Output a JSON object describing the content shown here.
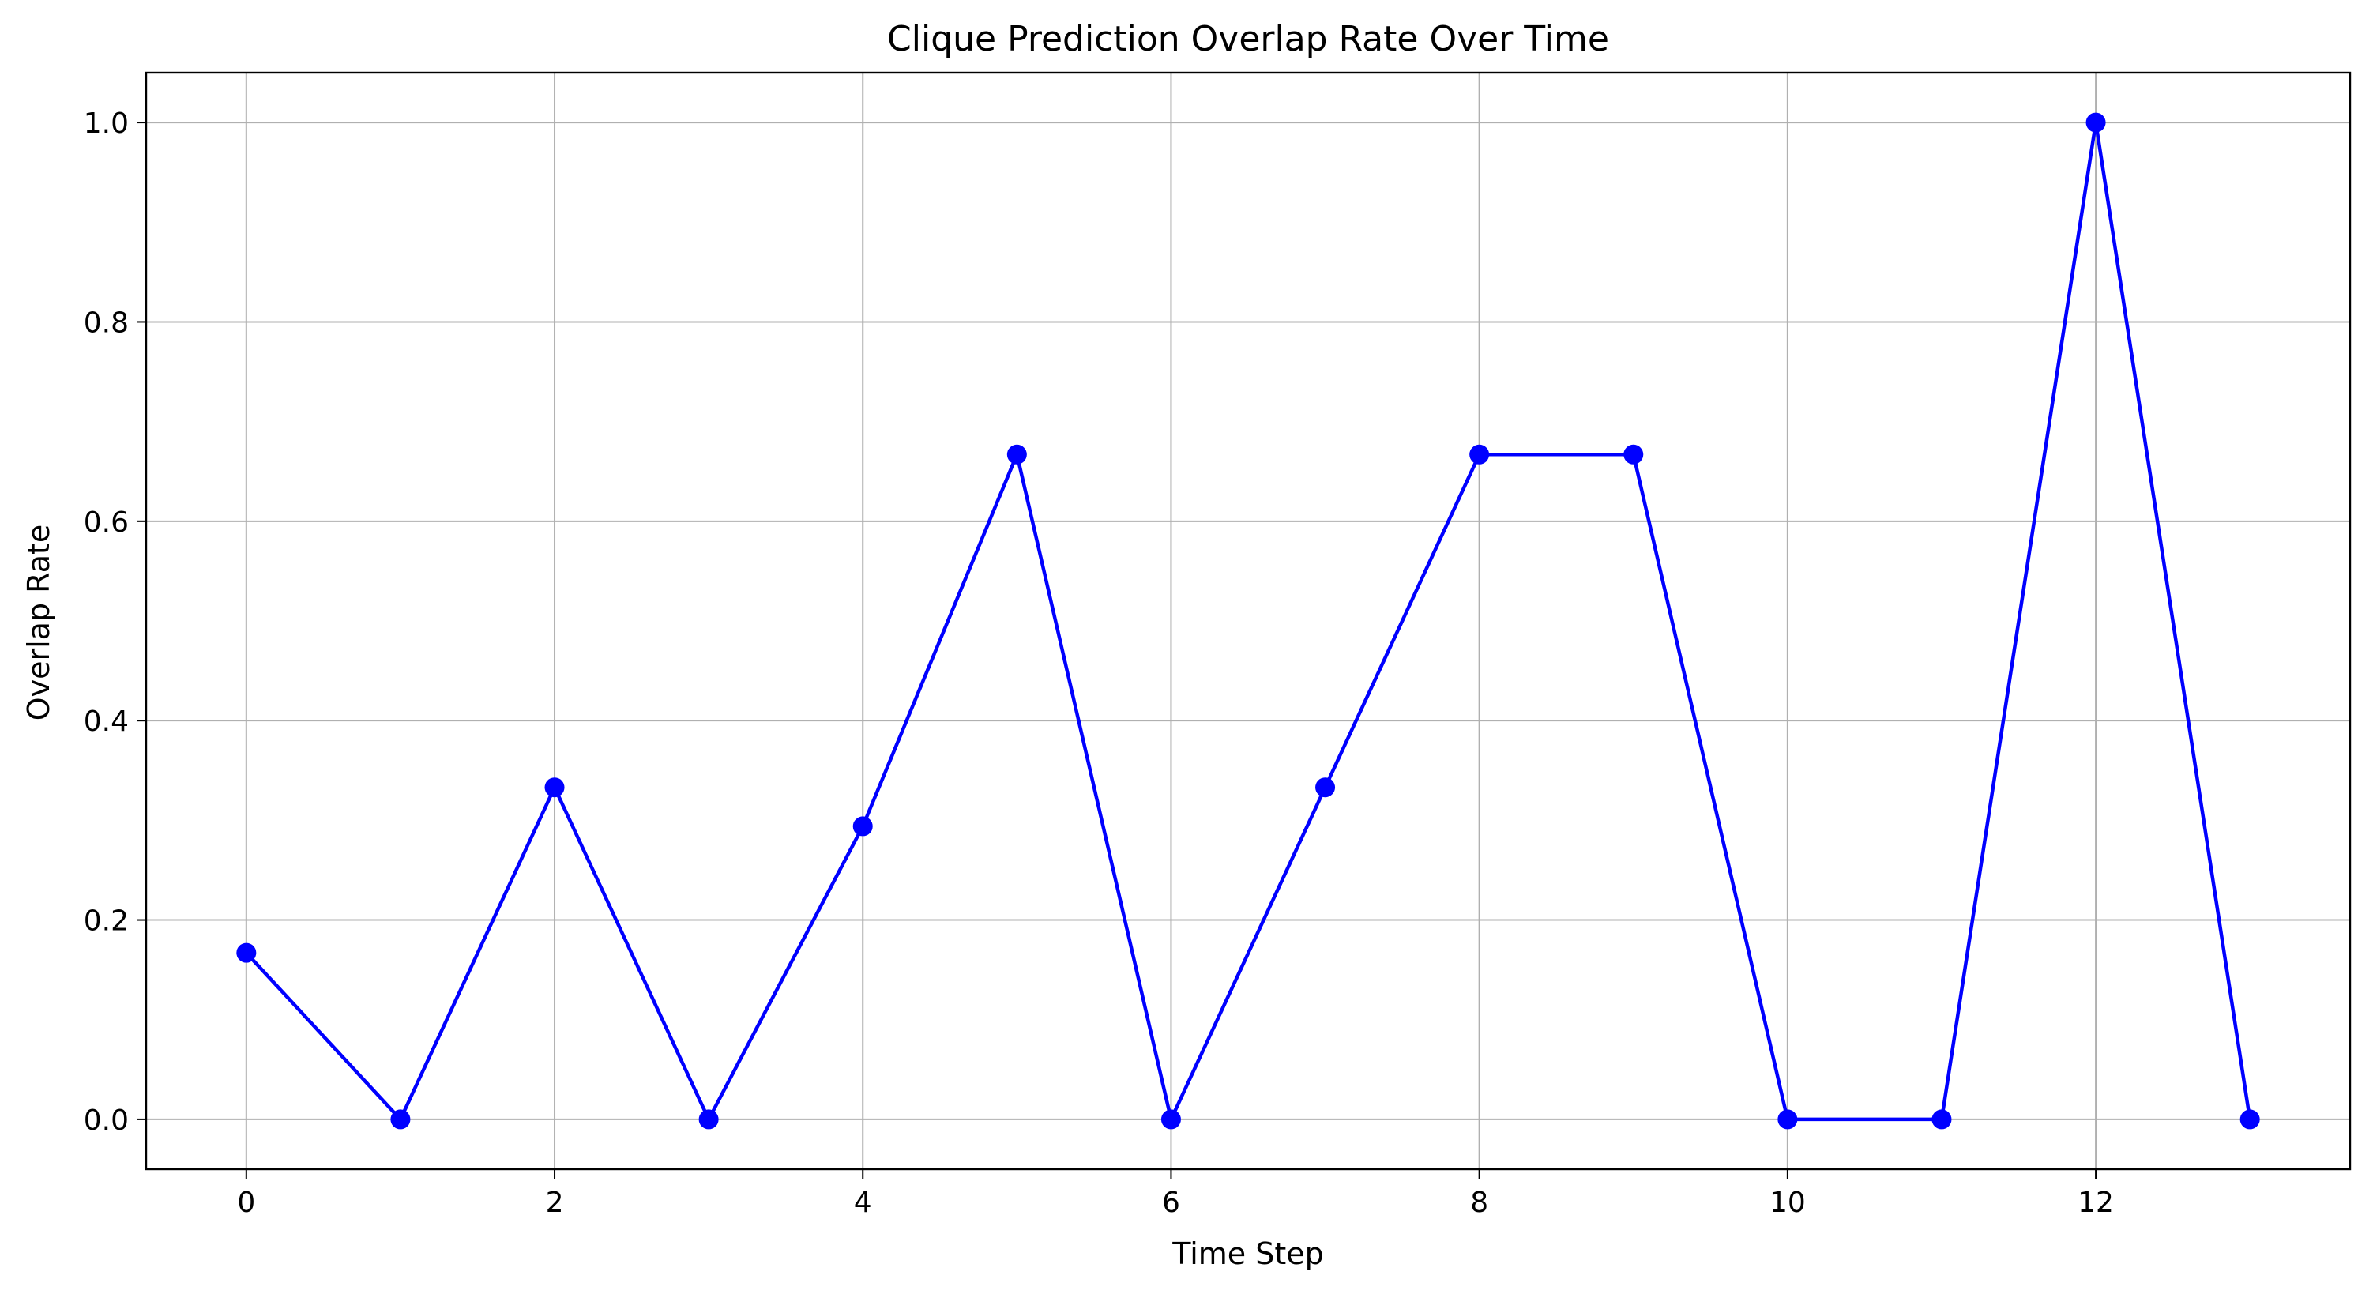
{
  "chart_data": {
    "type": "line",
    "title": "Clique Prediction Overlap Rate Over Time",
    "xlabel": "Time Step",
    "ylabel": "Overlap Rate",
    "xlim": [
      -0.65,
      13.65
    ],
    "ylim": [
      -0.05,
      1.05
    ],
    "xticks": [
      0,
      2,
      4,
      6,
      8,
      10,
      12
    ],
    "xtick_labels": [
      "0",
      "2",
      "4",
      "6",
      "8",
      "10",
      "12"
    ],
    "yticks": [
      0.0,
      0.2,
      0.4,
      0.6,
      0.8,
      1.0
    ],
    "ytick_labels": [
      "0.0",
      "0.2",
      "0.4",
      "0.6",
      "0.8",
      "1.0"
    ],
    "grid": true,
    "series": [
      {
        "x": [
          0,
          1,
          2,
          3,
          4,
          5,
          6,
          7,
          8,
          9,
          10,
          11,
          12,
          13
        ],
        "values": [
          0.167,
          0.0,
          0.333,
          0.0,
          0.294,
          0.667,
          0.0,
          0.333,
          0.667,
          0.667,
          0.0,
          0.0,
          1.0,
          0.0
        ],
        "color": "#0000ff",
        "marker": "circle"
      }
    ]
  }
}
